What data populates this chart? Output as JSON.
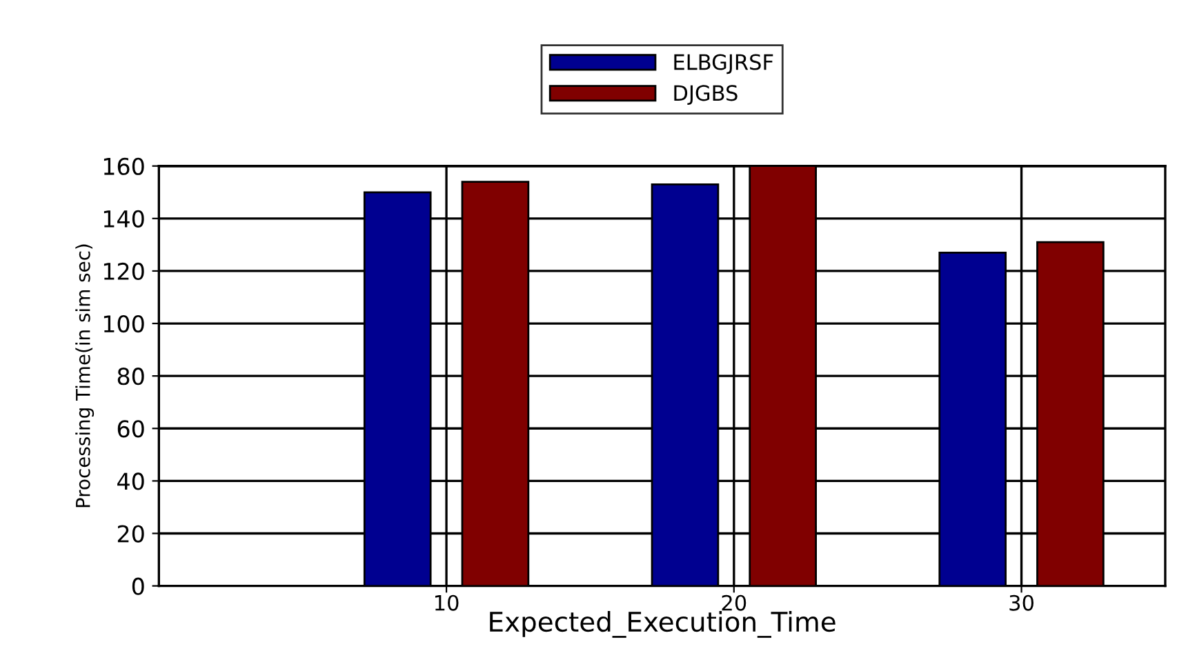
{
  "chart_data": {
    "type": "bar",
    "xlabel": "Expected_Execution_Time",
    "ylabel": "Processing Time(in sim sec)",
    "x": [
      10,
      20,
      30
    ],
    "series": [
      {
        "name": "ELBGJRSF",
        "color": "#000090",
        "values": [
          150,
          153,
          127
        ]
      },
      {
        "name": "DJGBS",
        "color": "#800000",
        "values": [
          154,
          160,
          131
        ]
      }
    ],
    "xlim": [
      0,
      35
    ],
    "xticks": [
      10,
      20,
      30
    ],
    "ylim": [
      0,
      160
    ],
    "yticks": [
      0,
      20,
      40,
      60,
      80,
      100,
      120,
      140,
      160
    ],
    "grid": true,
    "legend": "top"
  }
}
